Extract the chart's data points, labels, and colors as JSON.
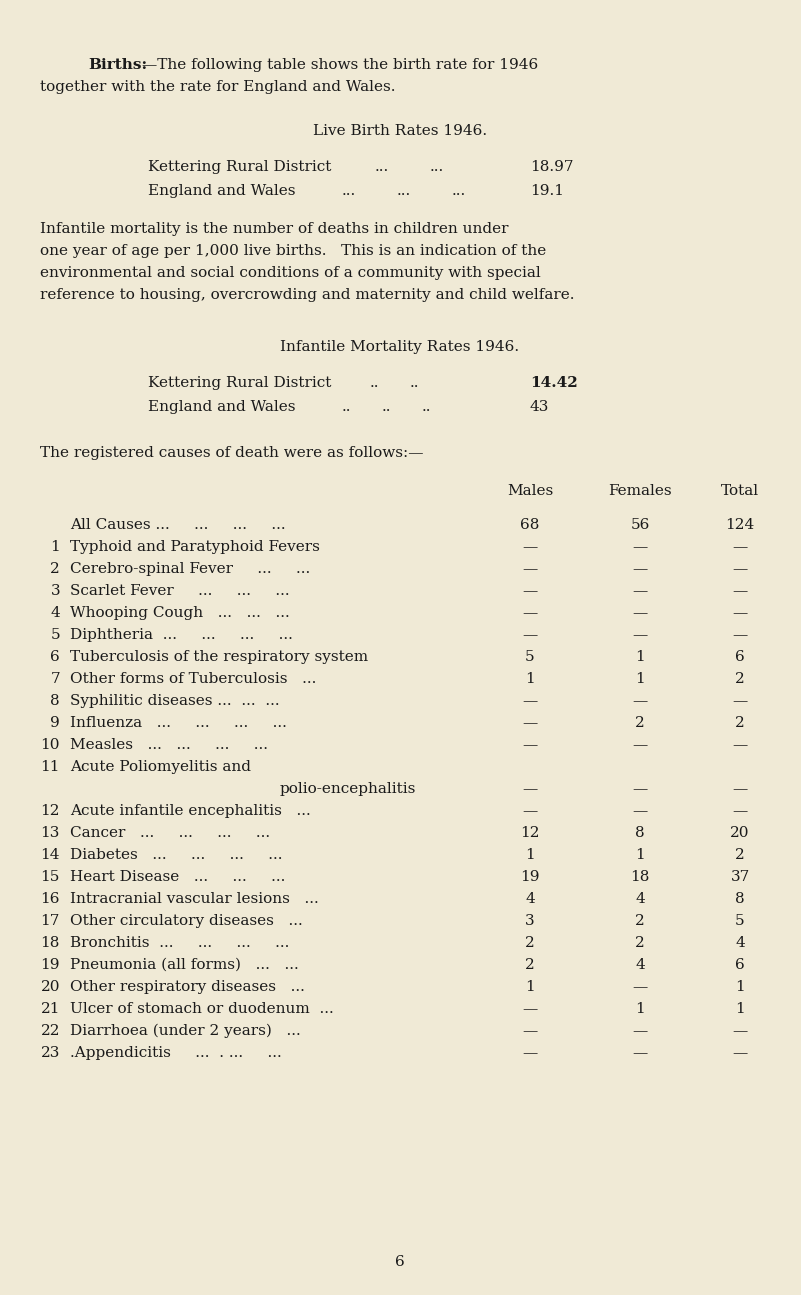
{
  "background_color": "#f0ead6",
  "text_color": "#1a1a1a",
  "page_number": "6",
  "figsize": [
    8.01,
    12.95
  ],
  "dpi": 100
}
